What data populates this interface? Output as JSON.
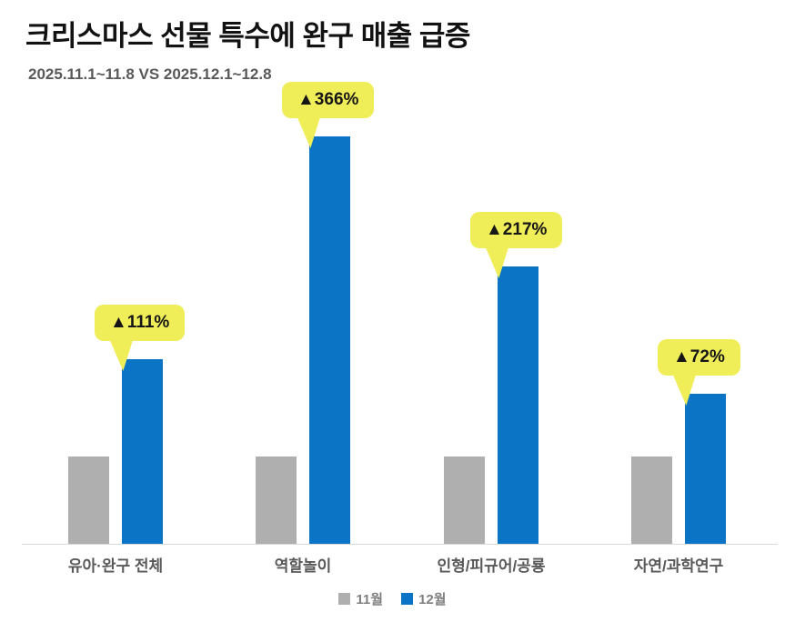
{
  "title": "크리스마스 선물 특수에 완구 매출 급증",
  "subtitle": "2025.11.1~11.8 VS 2025.12.1~12.8",
  "colors": {
    "title_text": "#121212",
    "subtitle_text": "#595959",
    "category_label_text": "#595959",
    "legend_text": "#7f7f7f",
    "axis_line": "#d9d9d9",
    "callout_bg": "#f0ee58",
    "callout_text": "#161616"
  },
  "chart_data": {
    "type": "bar",
    "title": "크리스마스 선물 특수에 완구 매출 급증",
    "subtitle": "2025.11.1~11.8 VS 2025.12.1~12.8",
    "categories": [
      "유아·완구 전체",
      "역할놀이",
      "인형/피규어/공룡",
      "자연/과학연구"
    ],
    "series": [
      {
        "name": "11월",
        "key": "nov",
        "color": "#afafaf",
        "values": [
          100,
          100,
          100,
          100
        ]
      },
      {
        "name": "12월",
        "key": "dec",
        "color": "#0b74c4",
        "values": [
          211,
          466,
          317,
          172
        ]
      }
    ],
    "annotations": [
      "▲111%",
      "▲366%",
      "▲217%",
      "▲72%"
    ],
    "annotation_note": "percent increase of 12월 vs 11월 per category: 111, 366, 217, 72",
    "xlabel": "",
    "ylabel": "",
    "ylim": [
      0,
      520
    ],
    "grid": false,
    "y_axis_visible": false,
    "legend_position": "bottom"
  }
}
